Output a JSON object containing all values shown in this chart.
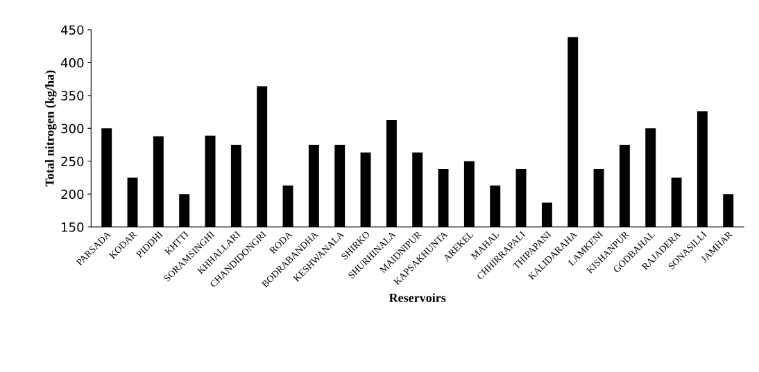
{
  "chart_data": {
    "type": "bar",
    "xlabel": "Reservoirs",
    "ylabel": "Total nitrogen (kg/ha)",
    "categories": [
      "PARSADA",
      "KODAR",
      "PIDDHI",
      "KHTTI",
      "SORAMSINGHI",
      "KHHALLARI",
      "CHANDIDONGRI",
      "RODA",
      "BODRABANDHA",
      "KESHWANALA",
      "SHIRKO",
      "SHURHINALA",
      "MAIDNIPUR",
      "KAPSAKHUNTA",
      "AREKEL",
      "MAHAL",
      "CHHIRRAPALI",
      "THIPAPANI",
      "KALIDARAHA",
      "LAMKENI",
      "KISHANPUR",
      "GODBAHAL",
      "RAJADERA",
      "SONASILLI",
      "JAMHAR"
    ],
    "values": [
      300,
      225,
      288,
      200,
      289,
      275,
      364,
      213,
      275,
      275,
      263,
      313,
      263,
      238,
      250,
      213,
      238,
      187,
      439,
      238,
      275,
      300,
      225,
      326,
      200
    ],
    "color": "#000000",
    "ylim": [
      150,
      450
    ],
    "yticks": [
      150,
      200,
      250,
      300,
      350,
      400,
      450
    ],
    "grid": false
  }
}
